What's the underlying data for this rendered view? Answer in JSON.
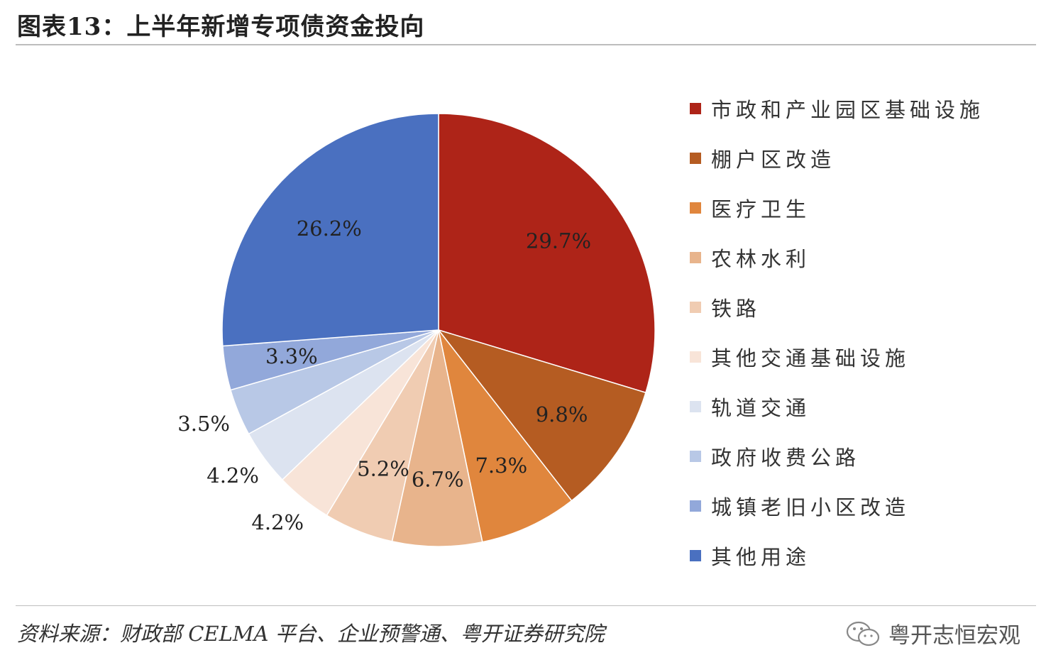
{
  "title": "图表13：上半年新增专项债资金投向",
  "chart_data": {
    "type": "pie",
    "title": "图表13：上半年新增专项债资金投向",
    "legend_position": "right",
    "slices": [
      {
        "label": "市政和产业园区基础设施",
        "value": 29.7,
        "display": "29.7%",
        "color": "#AE2418"
      },
      {
        "label": "棚户区改造",
        "value": 9.8,
        "display": "9.8%",
        "color": "#B55C22"
      },
      {
        "label": "医疗卫生",
        "value": 7.3,
        "display": "7.3%",
        "color": "#E0863D"
      },
      {
        "label": "农林水利",
        "value": 6.7,
        "display": "6.7%",
        "color": "#E8B48C"
      },
      {
        "label": "铁路",
        "value": 5.2,
        "display": "5.2%",
        "color": "#F0CCB2"
      },
      {
        "label": "其他交通基础设施",
        "value": 4.2,
        "display": "4.2%",
        "color": "#F8E4D8"
      },
      {
        "label": "轨道交通",
        "value": 4.2,
        "display": "4.2%",
        "color": "#DCE3F0"
      },
      {
        "label": "政府收费公路",
        "value": 3.5,
        "display": "3.5%",
        "color": "#B8C8E6"
      },
      {
        "label": "城镇老旧小区改造",
        "value": 3.3,
        "display": "3.3%",
        "color": "#92A8DA"
      },
      {
        "label": "其他用途",
        "value": 26.2,
        "display": "26.2%",
        "color": "#4A70C0"
      }
    ]
  },
  "source": "资料来源：财政部 CELMA 平台、企业预警通、粤开证券研究院",
  "watermark": {
    "text": "粤开志恒宏观",
    "icon": "wechat-icon"
  }
}
